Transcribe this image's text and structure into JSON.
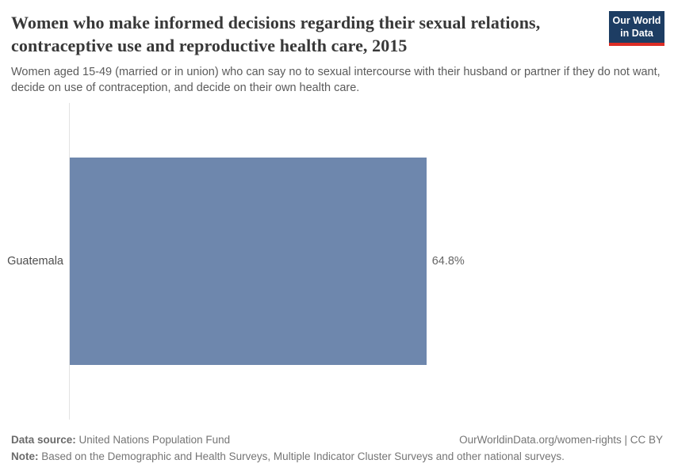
{
  "header": {
    "title": "Women who make informed decisions regarding their sexual relations, contraceptive use and reproductive health care, 2015",
    "subtitle": "Women aged 15-49 (married or in union) who can say no to sexual intercourse with their husband or partner if they do not want, decide on use of contraception, and decide on their own health care.",
    "logo": {
      "line1": "Our World",
      "line2": "in Data",
      "bg_color": "#1d3d63",
      "accent_color": "#dc2d25"
    }
  },
  "chart_data": {
    "type": "bar",
    "orientation": "horizontal",
    "title": "Women who make informed decisions regarding their sexual relations, contraceptive use and reproductive health care, 2015",
    "categories": [
      "Guatemala"
    ],
    "values": [
      64.8
    ],
    "value_labels": [
      "64.8%"
    ],
    "unit": "%",
    "xlim": [
      0,
      100
    ],
    "axis_ticks_visible": false,
    "grid": false,
    "legend": false,
    "bar_color": "#6e87ad",
    "axis_line_color": "#e3e3e3"
  },
  "footer": {
    "source_label": "Data source:",
    "source_value": "United Nations Population Fund",
    "url_text": "OurWorldinData.org/women-rights | CC BY",
    "note_label": "Note:",
    "note_value": "Based on the Demographic and Health Surveys, Multiple Indicator Cluster Surveys and other national surveys."
  }
}
